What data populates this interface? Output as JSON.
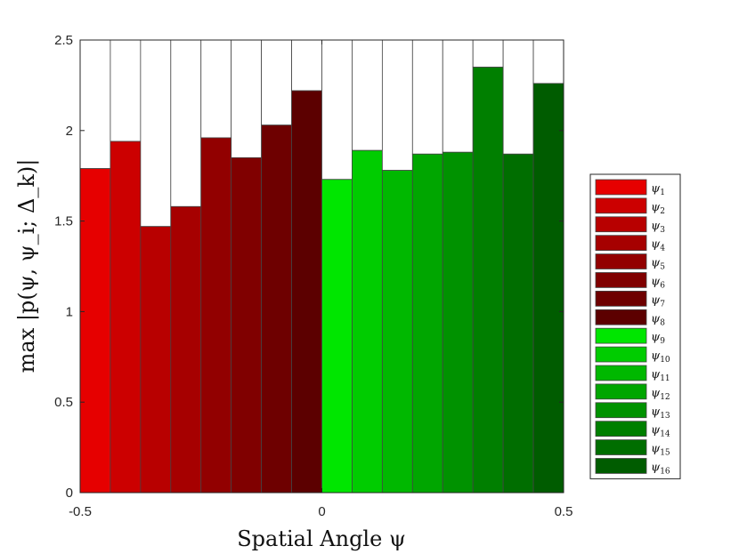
{
  "chart_data": {
    "type": "bar",
    "xlabel": "Spatial Angle ψ",
    "ylabel": "max |p(ψ, ψ_i; Δ_k)|",
    "xlim": [
      -0.5,
      0.5
    ],
    "ylim": [
      0,
      2.5
    ],
    "x_tick_labels": [
      "-0.5",
      "0",
      "0.5"
    ],
    "y_tick_labels": [
      "0",
      "0.5",
      "1",
      "1.5",
      "2",
      "2.5"
    ],
    "grid": false,
    "legend_position": "right",
    "bin_width": 0.0625,
    "ceiling": 2.5,
    "series": [
      {
        "name": "ψ1",
        "x": -0.46875,
        "value": 1.79,
        "color": "#e60000"
      },
      {
        "name": "ψ2",
        "x": -0.40625,
        "value": 1.94,
        "color": "#cc0000"
      },
      {
        "name": "ψ3",
        "x": -0.34375,
        "value": 1.47,
        "color": "#b80000"
      },
      {
        "name": "ψ4",
        "x": -0.28125,
        "value": 1.58,
        "color": "#a60000"
      },
      {
        "name": "ψ5",
        "x": -0.21875,
        "value": 1.96,
        "color": "#920000"
      },
      {
        "name": "ψ6",
        "x": -0.15625,
        "value": 1.85,
        "color": "#800000"
      },
      {
        "name": "ψ7",
        "x": -0.09375,
        "value": 2.03,
        "color": "#6e0000"
      },
      {
        "name": "ψ8",
        "x": -0.03125,
        "value": 2.22,
        "color": "#5c0000"
      },
      {
        "name": "ψ9",
        "x": 0.03125,
        "value": 1.73,
        "color": "#00e600"
      },
      {
        "name": "ψ10",
        "x": 0.09375,
        "value": 1.89,
        "color": "#00cc00"
      },
      {
        "name": "ψ11",
        "x": 0.15625,
        "value": 1.78,
        "color": "#00b800"
      },
      {
        "name": "ψ12",
        "x": 0.21875,
        "value": 1.87,
        "color": "#00a600"
      },
      {
        "name": "ψ13",
        "x": 0.28125,
        "value": 1.88,
        "color": "#009200"
      },
      {
        "name": "ψ14",
        "x": 0.34375,
        "value": 2.35,
        "color": "#007f00"
      },
      {
        "name": "ψ15",
        "x": 0.40625,
        "value": 1.87,
        "color": "#006e00"
      },
      {
        "name": "ψ16",
        "x": 0.46875,
        "value": 2.26,
        "color": "#005c00"
      }
    ]
  },
  "legend": {
    "items": [
      {
        "base": "ψ",
        "sub": "1"
      },
      {
        "base": "ψ",
        "sub": "2"
      },
      {
        "base": "ψ",
        "sub": "3"
      },
      {
        "base": "ψ",
        "sub": "4"
      },
      {
        "base": "ψ",
        "sub": "5"
      },
      {
        "base": "ψ",
        "sub": "6"
      },
      {
        "base": "ψ",
        "sub": "7"
      },
      {
        "base": "ψ",
        "sub": "8"
      },
      {
        "base": "ψ",
        "sub": "9"
      },
      {
        "base": "ψ",
        "sub": "10"
      },
      {
        "base": "ψ",
        "sub": "11"
      },
      {
        "base": "ψ",
        "sub": "12"
      },
      {
        "base": "ψ",
        "sub": "13"
      },
      {
        "base": "ψ",
        "sub": "14"
      },
      {
        "base": "ψ",
        "sub": "15"
      },
      {
        "base": "ψ",
        "sub": "16"
      }
    ]
  }
}
